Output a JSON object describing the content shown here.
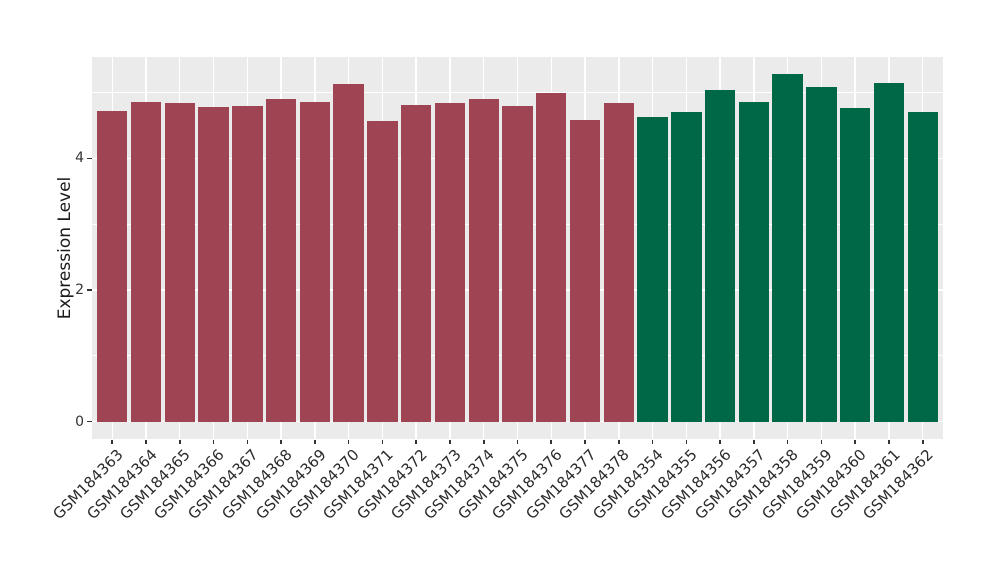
{
  "chart_data": {
    "type": "bar",
    "title": "",
    "xlabel": "",
    "ylabel": "Expression Level",
    "categories": [
      "GSM184363",
      "GSM184364",
      "GSM184365",
      "GSM184366",
      "GSM184367",
      "GSM184368",
      "GSM184369",
      "GSM184370",
      "GSM184371",
      "GSM184372",
      "GSM184373",
      "GSM184374",
      "GSM184375",
      "GSM184376",
      "GSM184377",
      "GSM184378",
      "GSM184354",
      "GSM184355",
      "GSM184356",
      "GSM184357",
      "GSM184358",
      "GSM184359",
      "GSM184360",
      "GSM184361",
      "GSM184362"
    ],
    "values": [
      4.72,
      4.85,
      4.84,
      4.78,
      4.8,
      4.9,
      4.86,
      5.13,
      4.57,
      4.81,
      4.84,
      4.9,
      4.8,
      4.99,
      4.58,
      4.84,
      4.62,
      4.71,
      5.03,
      4.86,
      5.28,
      5.09,
      4.76,
      5.14,
      4.7
    ],
    "color_groups": [
      0,
      0,
      0,
      0,
      0,
      0,
      0,
      0,
      0,
      0,
      0,
      0,
      0,
      0,
      0,
      0,
      1,
      1,
      1,
      1,
      1,
      1,
      1,
      1,
      1
    ],
    "group_colors": [
      "#9E4453",
      "#006747"
    ],
    "yticks": [
      0,
      2,
      4
    ],
    "yticks_minor": [
      1,
      3,
      5
    ],
    "ylim": [
      -0.26,
      5.55
    ],
    "grid": true,
    "legend": "none",
    "panel_background": "#EBEBEB",
    "gridline_color": "#FFFFFF",
    "axis_text_color": "#333333",
    "bar_gap_fraction": 0.9
  }
}
